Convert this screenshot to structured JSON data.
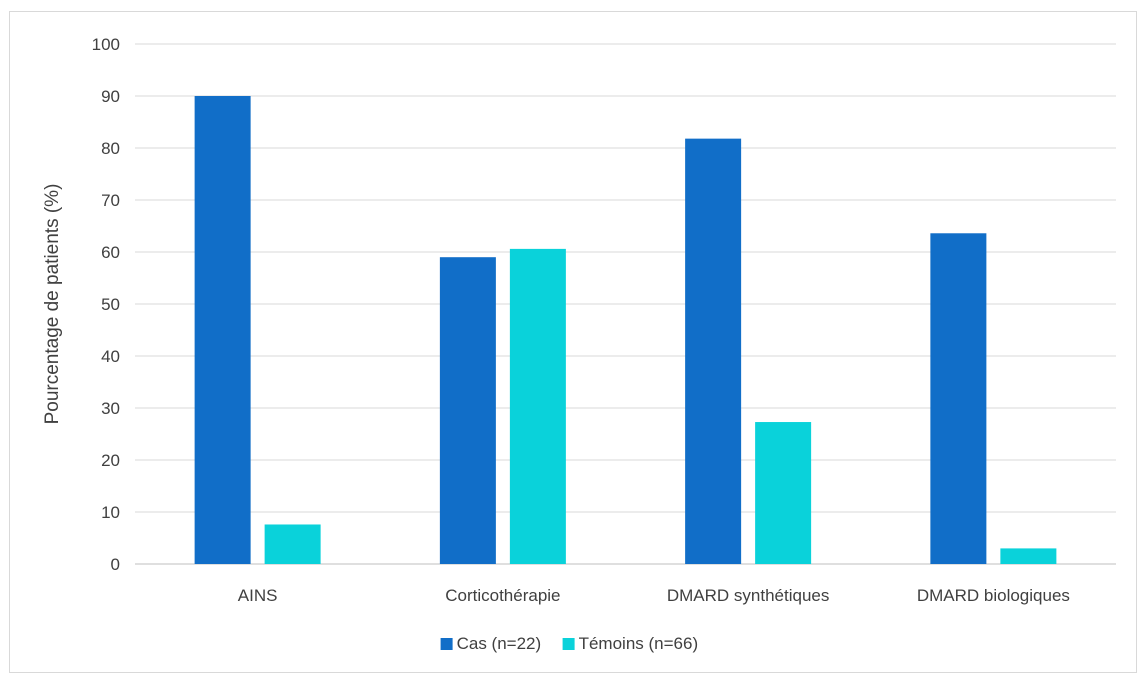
{
  "chart_data": {
    "type": "bar",
    "title": "",
    "xlabel": "",
    "ylabel": "Pourcentage de patients (%)",
    "ylim": [
      0,
      100
    ],
    "yticks": [
      0,
      10,
      20,
      30,
      40,
      50,
      60,
      70,
      80,
      90,
      100
    ],
    "categories": [
      "AINS",
      "Corticothérapie",
      "DMARD synthétiques",
      "DMARD biologiques"
    ],
    "series": [
      {
        "name": "Cas (n=22)",
        "color": "#116ec8",
        "values": [
          90,
          59,
          81.8,
          63.6
        ]
      },
      {
        "name": "Témoins (n=66)",
        "color": "#0ad2da",
        "values": [
          7.6,
          60.6,
          27.3,
          3.0
        ]
      }
    ],
    "grid": true,
    "legend": "bottom",
    "gridColor": "#d9d9d9",
    "axisColor": "#bfbfbf"
  }
}
